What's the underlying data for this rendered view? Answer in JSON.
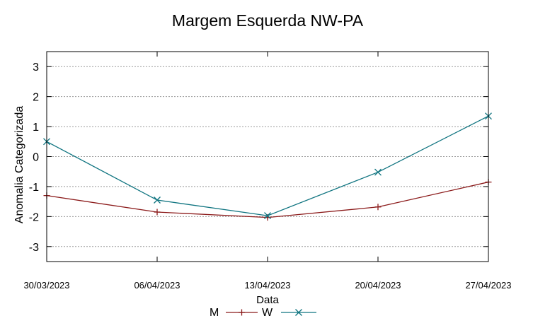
{
  "chart_data": {
    "type": "line",
    "title": "Margem Esquerda NW-PA",
    "xlabel": "Data",
    "ylabel": "Anomalia Categorizada",
    "x_days": [
      0,
      7,
      14,
      21,
      28
    ],
    "categories": [
      "30/03/2023",
      "06/04/2023",
      "13/04/2023",
      "20/04/2023",
      "27/04/2023"
    ],
    "xlim": [
      0,
      28
    ],
    "ylim": [
      -3.5,
      3.5
    ],
    "yticks": [
      3,
      2,
      1,
      0,
      -1,
      -2,
      -3
    ],
    "grid": true,
    "legend_position": "bottom-center",
    "series": [
      {
        "name": "M",
        "color": "#8b1a1a",
        "marker": "plus",
        "values": [
          -1.3,
          -1.85,
          -2.03,
          -1.68,
          -0.85
        ]
      },
      {
        "name": "W",
        "color": "#0f7480",
        "marker": "cross",
        "values": [
          0.5,
          -1.45,
          -1.97,
          -0.52,
          1.35
        ]
      }
    ]
  }
}
